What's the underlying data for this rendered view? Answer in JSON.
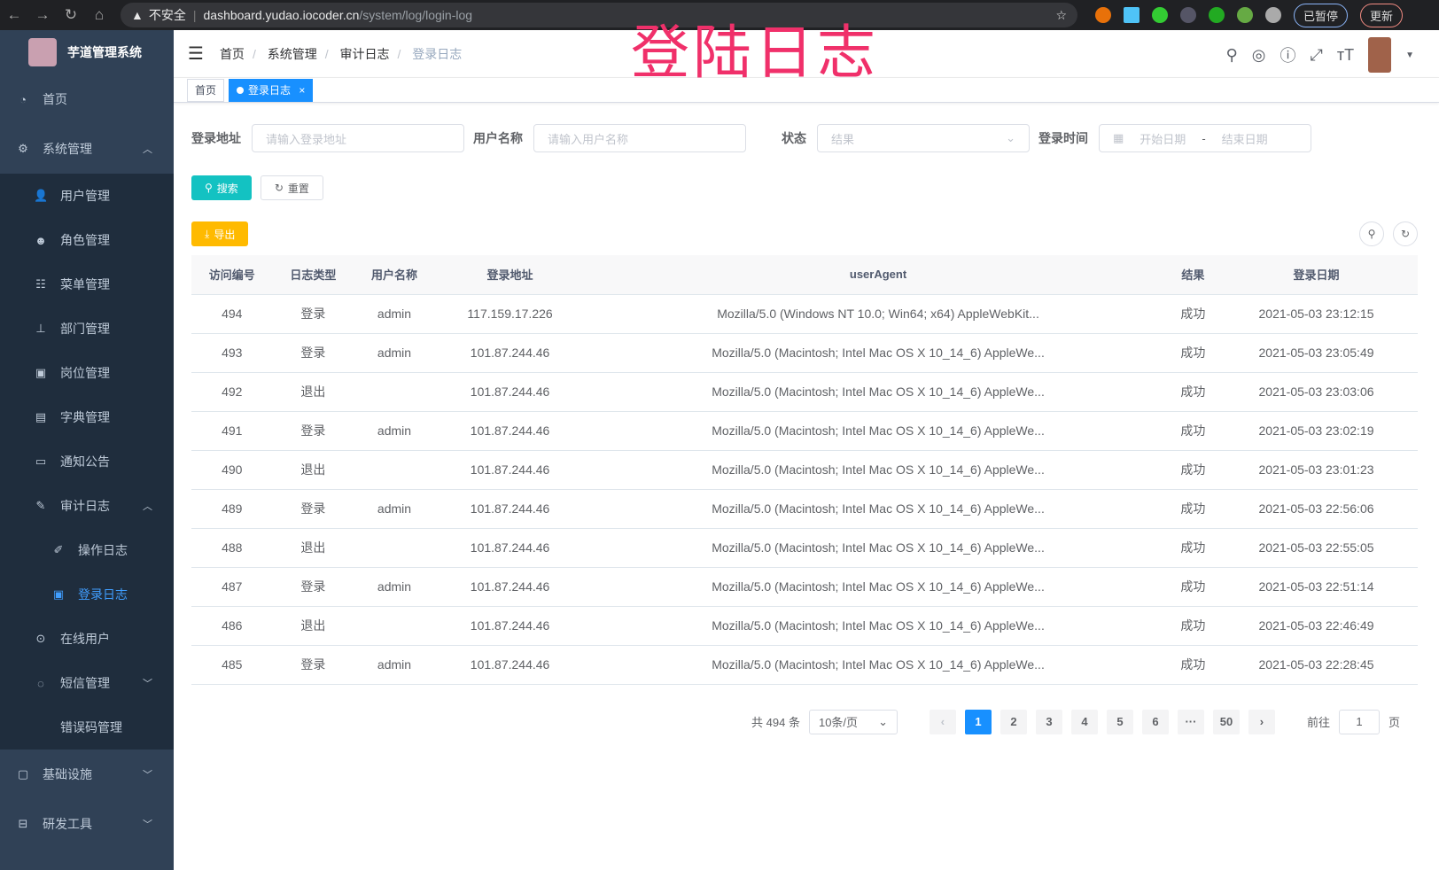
{
  "browser": {
    "security": "不安全",
    "url_host": "dashboard.yudao.iocoder.cn",
    "url_path": "/system/log/login-log",
    "paused_label": "已暂停",
    "update_label": "更新"
  },
  "overlay_title": "登陆日志",
  "sidebar": {
    "app_name": "芋道管理系统",
    "items": [
      {
        "label": "首页",
        "icon": "dashboard-icon"
      },
      {
        "label": "系统管理",
        "icon": "gear-icon",
        "expanded": true,
        "children": [
          {
            "label": "用户管理",
            "icon": "user-icon"
          },
          {
            "label": "角色管理",
            "icon": "role-icon"
          },
          {
            "label": "菜单管理",
            "icon": "menu-icon"
          },
          {
            "label": "部门管理",
            "icon": "tree-icon"
          },
          {
            "label": "岗位管理",
            "icon": "post-icon"
          },
          {
            "label": "字典管理",
            "icon": "dict-icon"
          },
          {
            "label": "通知公告",
            "icon": "message-icon"
          },
          {
            "label": "审计日志",
            "icon": "log-icon",
            "expanded": true,
            "children": [
              {
                "label": "操作日志",
                "icon": "form-icon"
              },
              {
                "label": "登录日志",
                "icon": "logininfor-icon",
                "active": true
              }
            ]
          },
          {
            "label": "在线用户",
            "icon": "online-icon"
          },
          {
            "label": "短信管理",
            "icon": "sms-icon",
            "expanded": false
          },
          {
            "label": "错误码管理",
            "icon": "code-icon"
          }
        ]
      },
      {
        "label": "基础设施",
        "icon": "monitor-icon",
        "expanded": false
      },
      {
        "label": "研发工具",
        "icon": "tool-icon",
        "expanded": false
      }
    ]
  },
  "breadcrumb": [
    "首页",
    "系统管理",
    "审计日志",
    "登录日志"
  ],
  "tags": [
    {
      "label": "首页"
    },
    {
      "label": "登录日志",
      "active": true,
      "close": "×"
    }
  ],
  "filters": {
    "address_label": "登录地址",
    "address_placeholder": "请输入登录地址",
    "username_label": "用户名称",
    "username_placeholder": "请输入用户名称",
    "status_label": "状态",
    "status_placeholder": "结果",
    "time_label": "登录时间",
    "start_placeholder": "开始日期",
    "range_sep": "-",
    "end_placeholder": "结束日期"
  },
  "buttons": {
    "search": "搜索",
    "reset": "重置",
    "export": "导出"
  },
  "table": {
    "columns": [
      "访问编号",
      "日志类型",
      "用户名称",
      "登录地址",
      "userAgent",
      "结果",
      "登录日期"
    ],
    "rows": [
      [
        "494",
        "登录",
        "admin",
        "117.159.17.226",
        "Mozilla/5.0 (Windows NT 10.0; Win64; x64) AppleWebKit...",
        "成功",
        "2021-05-03 23:12:15"
      ],
      [
        "493",
        "登录",
        "admin",
        "101.87.244.46",
        "Mozilla/5.0 (Macintosh; Intel Mac OS X 10_14_6) AppleWe...",
        "成功",
        "2021-05-03 23:05:49"
      ],
      [
        "492",
        "退出",
        "",
        "101.87.244.46",
        "Mozilla/5.0 (Macintosh; Intel Mac OS X 10_14_6) AppleWe...",
        "成功",
        "2021-05-03 23:03:06"
      ],
      [
        "491",
        "登录",
        "admin",
        "101.87.244.46",
        "Mozilla/5.0 (Macintosh; Intel Mac OS X 10_14_6) AppleWe...",
        "成功",
        "2021-05-03 23:02:19"
      ],
      [
        "490",
        "退出",
        "",
        "101.87.244.46",
        "Mozilla/5.0 (Macintosh; Intel Mac OS X 10_14_6) AppleWe...",
        "成功",
        "2021-05-03 23:01:23"
      ],
      [
        "489",
        "登录",
        "admin",
        "101.87.244.46",
        "Mozilla/5.0 (Macintosh; Intel Mac OS X 10_14_6) AppleWe...",
        "成功",
        "2021-05-03 22:56:06"
      ],
      [
        "488",
        "退出",
        "",
        "101.87.244.46",
        "Mozilla/5.0 (Macintosh; Intel Mac OS X 10_14_6) AppleWe...",
        "成功",
        "2021-05-03 22:55:05"
      ],
      [
        "487",
        "登录",
        "admin",
        "101.87.244.46",
        "Mozilla/5.0 (Macintosh; Intel Mac OS X 10_14_6) AppleWe...",
        "成功",
        "2021-05-03 22:51:14"
      ],
      [
        "486",
        "退出",
        "",
        "101.87.244.46",
        "Mozilla/5.0 (Macintosh; Intel Mac OS X 10_14_6) AppleWe...",
        "成功",
        "2021-05-03 22:46:49"
      ],
      [
        "485",
        "登录",
        "admin",
        "101.87.244.46",
        "Mozilla/5.0 (Macintosh; Intel Mac OS X 10_14_6) AppleWe...",
        "成功",
        "2021-05-03 22:28:45"
      ]
    ]
  },
  "pagination": {
    "total": "共 494 条",
    "page_size": "10条/页",
    "pages": [
      "1",
      "2",
      "3",
      "4",
      "5",
      "6",
      "···",
      "50"
    ],
    "current": "1",
    "goto_label": "前往",
    "goto_value": "1",
    "page_suffix": "页"
  }
}
